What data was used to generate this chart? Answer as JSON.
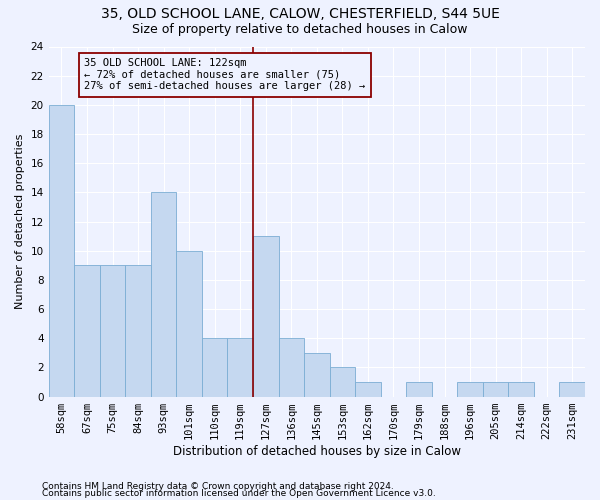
{
  "title1": "35, OLD SCHOOL LANE, CALOW, CHESTERFIELD, S44 5UE",
  "title2": "Size of property relative to detached houses in Calow",
  "xlabel": "Distribution of detached houses by size in Calow",
  "ylabel": "Number of detached properties",
  "categories": [
    "58sqm",
    "67sqm",
    "75sqm",
    "84sqm",
    "93sqm",
    "101sqm",
    "110sqm",
    "119sqm",
    "127sqm",
    "136sqm",
    "145sqm",
    "153sqm",
    "162sqm",
    "170sqm",
    "179sqm",
    "188sqm",
    "196sqm",
    "205sqm",
    "214sqm",
    "222sqm",
    "231sqm"
  ],
  "values": [
    20,
    9,
    9,
    9,
    14,
    10,
    4,
    4,
    11,
    4,
    3,
    2,
    1,
    0,
    1,
    0,
    1,
    1,
    1,
    0,
    1
  ],
  "bar_color": "#C5D8F0",
  "bar_edgecolor": "#7BADD4",
  "subject_line_color": "#8B0000",
  "annotation_text": "35 OLD SCHOOL LANE: 122sqm\n← 72% of detached houses are smaller (75)\n27% of semi-detached houses are larger (28) →",
  "annotation_box_color": "#8B0000",
  "ylim": [
    0,
    24
  ],
  "yticks": [
    0,
    2,
    4,
    6,
    8,
    10,
    12,
    14,
    16,
    18,
    20,
    22,
    24
  ],
  "footer1": "Contains HM Land Registry data © Crown copyright and database right 2024.",
  "footer2": "Contains public sector information licensed under the Open Government Licence v3.0.",
  "background_color": "#EEF2FF",
  "grid_color": "#FFFFFF",
  "title1_fontsize": 10,
  "title2_fontsize": 9,
  "xlabel_fontsize": 8.5,
  "ylabel_fontsize": 8,
  "tick_fontsize": 7.5,
  "annotation_fontsize": 7.5,
  "footer_fontsize": 6.5
}
